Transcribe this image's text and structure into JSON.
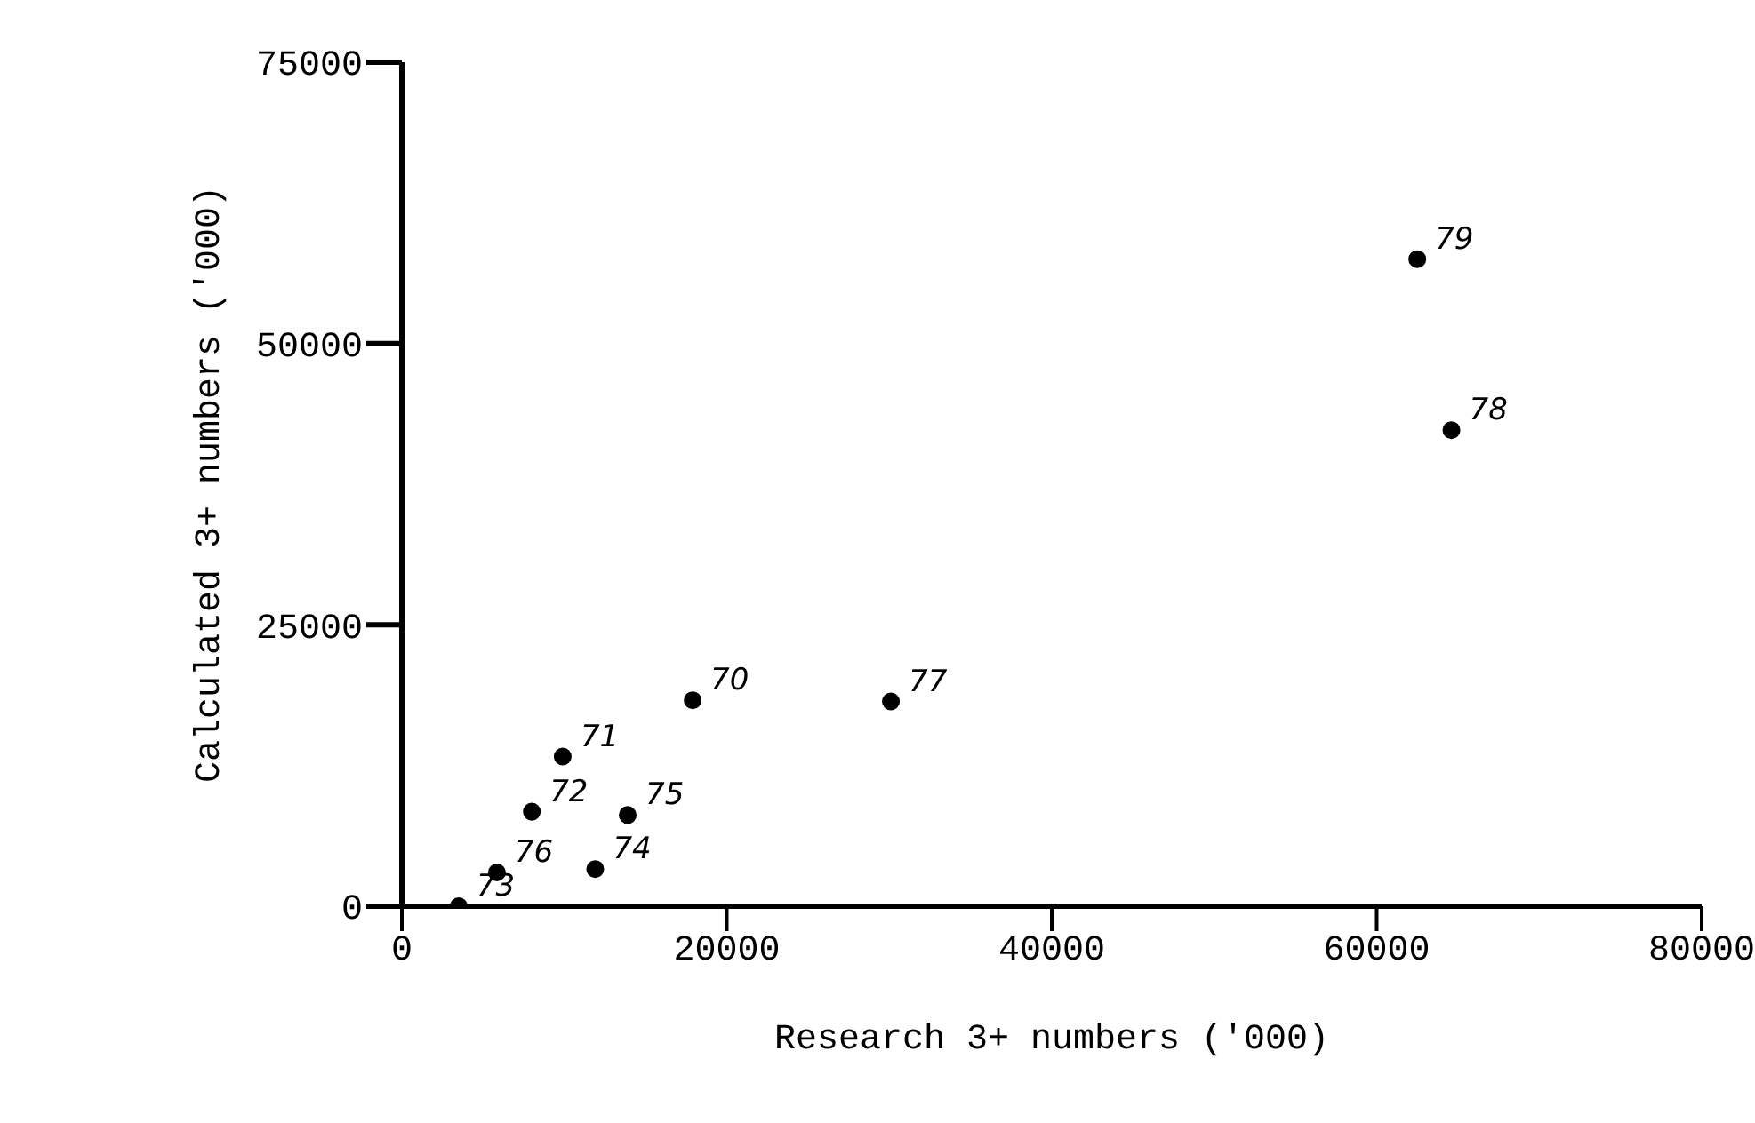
{
  "chart_data": {
    "type": "scatter",
    "xlabel": "Research 3+ numbers ('000)",
    "ylabel": "Calculated 3+ numbers ('000)",
    "series": [
      {
        "color": "#000000",
        "x": [
          17900,
          9900,
          8000,
          3500,
          11900,
          13900,
          5850,
          30100,
          64600,
          62500
        ],
        "values": [
          18300,
          13300,
          8400,
          0,
          3300,
          8100,
          3000,
          18200,
          42300,
          57500
        ]
      }
    ],
    "annotations": [
      {
        "text": "70",
        "x": 17900,
        "y": 18300
      },
      {
        "text": "71",
        "x": 9900,
        "y": 13300
      },
      {
        "text": "72",
        "x": 8000,
        "y": 8400
      },
      {
        "text": "73",
        "x": 3500,
        "y": 0
      },
      {
        "text": "74",
        "x": 11900,
        "y": 3300
      },
      {
        "text": "75",
        "x": 13900,
        "y": 8100
      },
      {
        "text": "76",
        "x": 5850,
        "y": 3000
      },
      {
        "text": "77",
        "x": 30100,
        "y": 18200
      },
      {
        "text": "78",
        "x": 64600,
        "y": 42300
      },
      {
        "text": "79",
        "x": 62500,
        "y": 57500
      }
    ],
    "xlim": [
      0,
      80000
    ],
    "xticks": [
      0,
      20000,
      40000,
      60000,
      80000
    ],
    "ylim": [
      0,
      75000
    ],
    "yticks": [
      0,
      25000,
      50000,
      75000
    ],
    "marker": "circle",
    "grid": false,
    "legend": false
  }
}
